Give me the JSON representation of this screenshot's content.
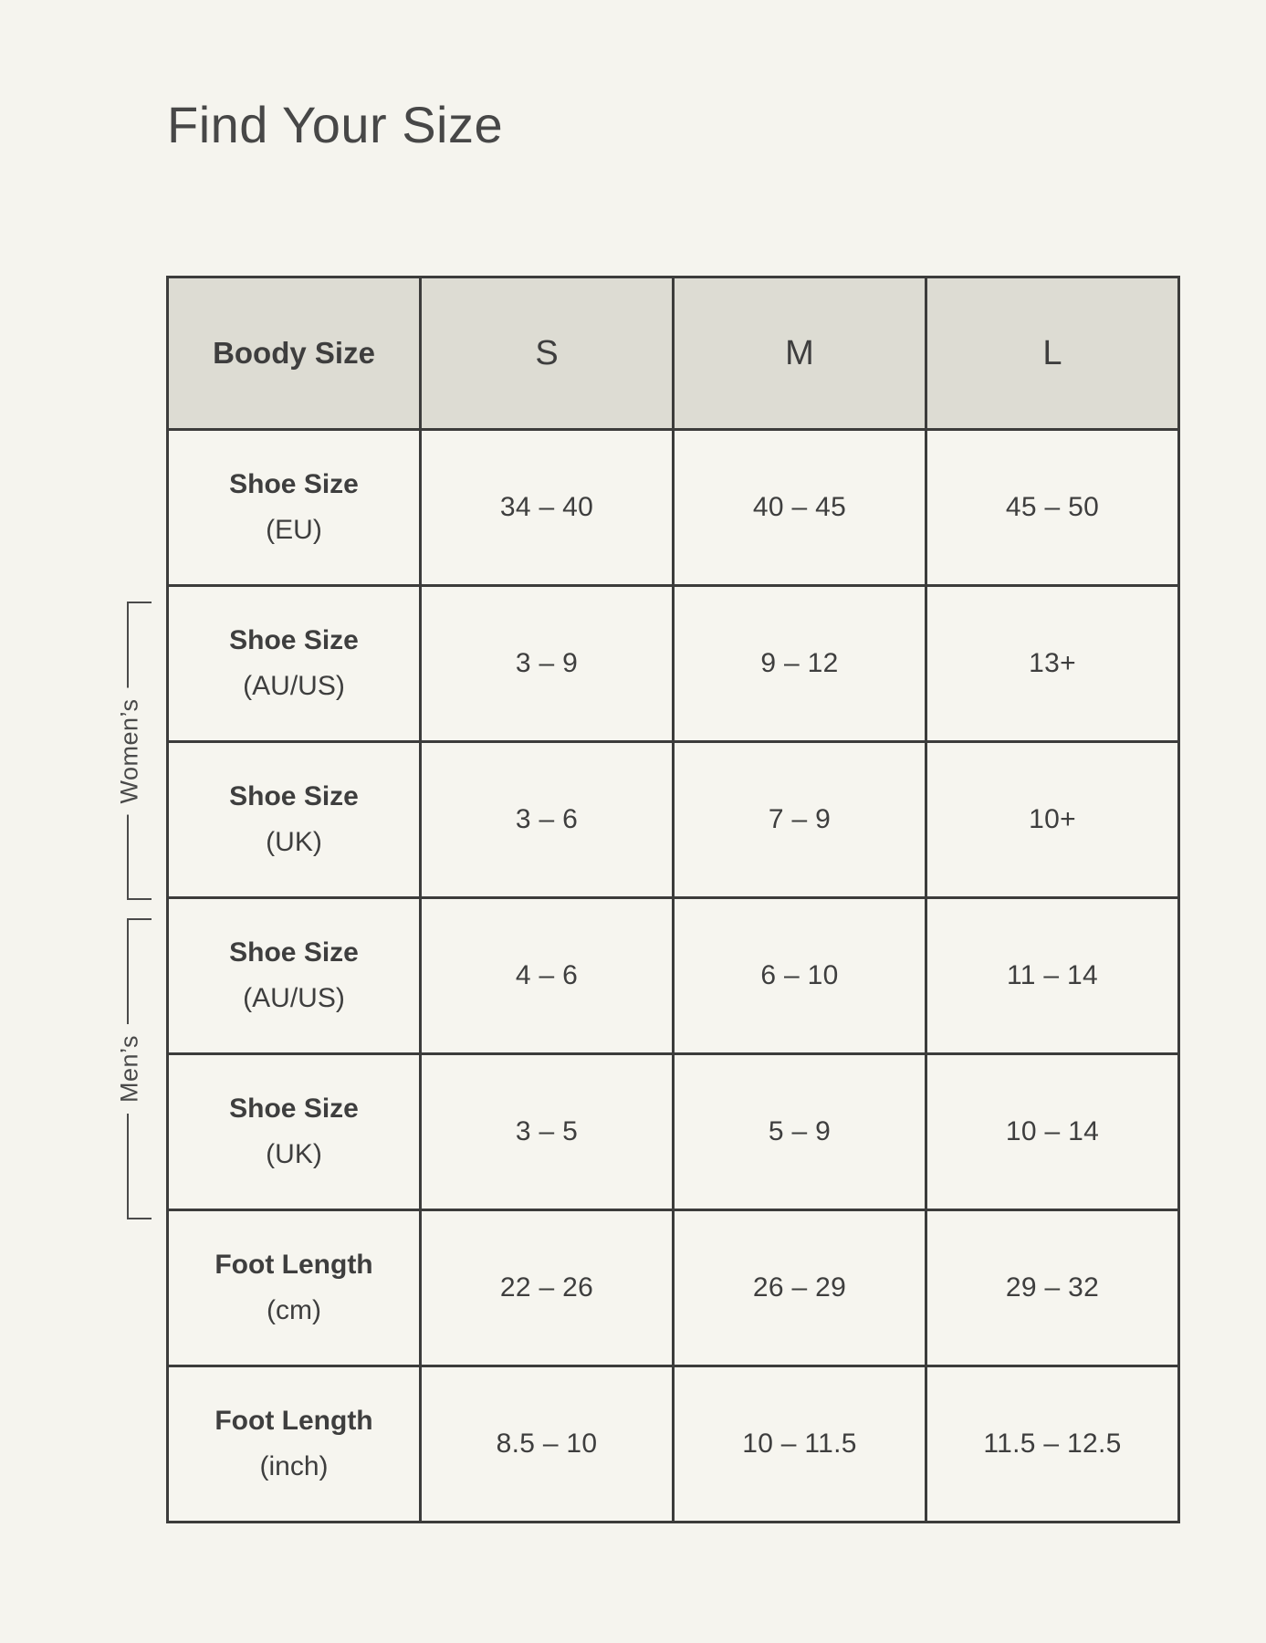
{
  "page": {
    "title": "Find Your Size"
  },
  "colors": {
    "background": "#f5f4ee",
    "header_bg": "#dddcd3",
    "border": "#3c3c3b",
    "text": "#3e3e3e"
  },
  "table": {
    "header": {
      "label": "Boody Size",
      "sizes": [
        "S",
        "M",
        "L"
      ]
    },
    "group_labels": {
      "womens": "Women’s",
      "mens": "Men’s"
    },
    "rows": [
      {
        "label": "Shoe Size",
        "unit": "(EU)",
        "group": "",
        "values": [
          "34 – 40",
          "40 – 45",
          "45 – 50"
        ]
      },
      {
        "label": "Shoe Size",
        "unit": "(AU/US)",
        "group": "womens",
        "values": [
          "3 – 9",
          "9 – 12",
          "13+"
        ]
      },
      {
        "label": "Shoe Size",
        "unit": "(UK)",
        "group": "womens",
        "values": [
          "3 – 6",
          "7 – 9",
          "10+"
        ]
      },
      {
        "label": "Shoe Size",
        "unit": "(AU/US)",
        "group": "mens",
        "values": [
          "4 – 6",
          "6 – 10",
          "11 – 14"
        ]
      },
      {
        "label": "Shoe Size",
        "unit": "(UK)",
        "group": "mens",
        "values": [
          "3 – 5",
          "5 – 9",
          "10 – 14"
        ]
      },
      {
        "label": "Foot Length",
        "unit": "(cm)",
        "group": "",
        "values": [
          "22 – 26",
          "26 – 29",
          "29 – 32"
        ]
      },
      {
        "label": "Foot Length",
        "unit": "(inch)",
        "group": "",
        "values": [
          "8.5 – 10",
          "10 – 11.5",
          "11.5 – 12.5"
        ]
      }
    ]
  }
}
